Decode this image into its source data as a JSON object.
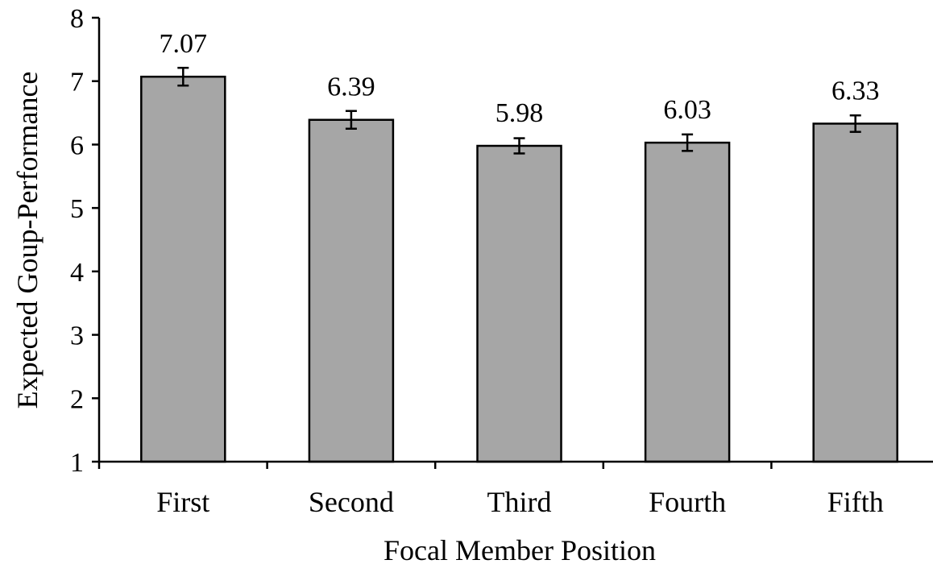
{
  "chart_data": {
    "type": "bar",
    "title": "",
    "xlabel": "Focal Member Position",
    "ylabel": "Expected Goup-Performance",
    "categories": [
      "First",
      "Second",
      "Third",
      "Fourth",
      "Fifth"
    ],
    "values": [
      7.07,
      6.39,
      5.98,
      6.03,
      6.33
    ],
    "value_labels": [
      "7.07",
      "6.39",
      "5.98",
      "6.03",
      "6.33"
    ],
    "error": [
      0.14,
      0.14,
      0.12,
      0.13,
      0.13
    ],
    "ylim": [
      1,
      8
    ],
    "yticks": [
      "1",
      "2",
      "3",
      "4",
      "5",
      "6",
      "7",
      "8"
    ],
    "grid": false,
    "legend": "none",
    "colors": {
      "bar_fill": "#a6a6a6",
      "bar_stroke": "#000000",
      "axis": "#000000"
    }
  }
}
